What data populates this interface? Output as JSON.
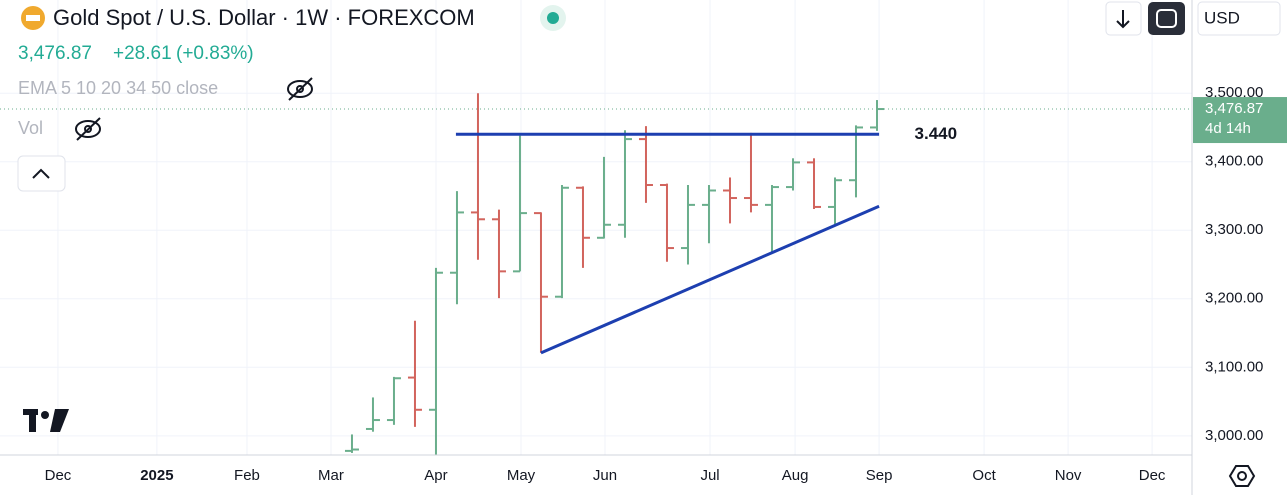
{
  "header": {
    "symbol": "Gold Spot / U.S. Dollar · 1W · FOREXCOM",
    "last": "3,476.87",
    "change": "+28.61",
    "change_pct": "(+0.83%)",
    "indicator": "EMA 5 10 20 34 50 close",
    "volume": "Vol",
    "currency": "USD"
  },
  "chart_data": {
    "type": "ohlc",
    "x": [
      14,
      15,
      16,
      17,
      18,
      19,
      20,
      21,
      22,
      23,
      24,
      25,
      26,
      27,
      28,
      29,
      30,
      31,
      32,
      33,
      34,
      35,
      36,
      37,
      38,
      39
    ],
    "open": [
      2978,
      3010,
      3023,
      3085,
      3038,
      3238,
      3326,
      3316,
      3240,
      3325,
      3203,
      3362,
      3289,
      3308,
      3433,
      3366,
      3274,
      3337,
      3358,
      3347,
      3337,
      3363,
      3399,
      3334,
      3373,
      3450
    ],
    "high": [
      3002,
      3056,
      3086,
      3168,
      3245,
      3357,
      3500,
      3330,
      3438,
      3326,
      3366,
      3364,
      3407,
      3446,
      3452,
      3368,
      3366,
      3366,
      3377,
      3442,
      3366,
      3405,
      3405,
      3377,
      3453,
      3490
    ],
    "low": [
      2975,
      3006,
      3016,
      3013,
      2972,
      3192,
      3257,
      3201,
      3240,
      3121,
      3201,
      3245,
      3288,
      3289,
      3340,
      3254,
      3250,
      3281,
      3310,
      3326,
      3268,
      3358,
      3331,
      3309,
      3348,
      3445
    ],
    "close": [
      2980,
      3023,
      3084,
      3038,
      3238,
      3326,
      3316,
      3240,
      3325,
      3203,
      3362,
      3289,
      3308,
      3433,
      3366,
      3274,
      3337,
      3358,
      3347,
      3337,
      3363,
      3399,
      3334,
      3373,
      3450,
      3476.87
    ],
    "up_color": "#6aae8c",
    "down_color": "#d2645d",
    "xlim": [
      -2.76,
      54
    ],
    "xticks": [
      {
        "value": 0,
        "label": "Dec"
      },
      {
        "value": 4.71,
        "label": "2025"
      },
      {
        "value": 9,
        "label": "Feb"
      },
      {
        "value": 13,
        "label": "Mar"
      },
      {
        "value": 18,
        "label": "Apr"
      },
      {
        "value": 22.05,
        "label": "May"
      },
      {
        "value": 26.05,
        "label": "Jun"
      },
      {
        "value": 31.05,
        "label": "Jul"
      },
      {
        "value": 35.1,
        "label": "Aug"
      },
      {
        "value": 39.1,
        "label": "Sep"
      },
      {
        "value": 44.1,
        "label": "Oct"
      },
      {
        "value": 48.1,
        "label": "Nov"
      },
      {
        "value": 52.1,
        "label": "Dec"
      }
    ],
    "ylim": [
      2972,
      3636
    ],
    "yticks": [
      {
        "value": 3000,
        "label": "3,000.00"
      },
      {
        "value": 3100,
        "label": "3,100.00"
      },
      {
        "value": 3200,
        "label": "3,200.00"
      },
      {
        "value": 3300,
        "label": "3,300.00"
      },
      {
        "value": 3400,
        "label": "3,400.00"
      },
      {
        "value": 3500,
        "label": "3,500.00"
      }
    ],
    "grid": true,
    "last_price": {
      "value": 3476.87,
      "label": "3,476.87"
    },
    "countdown": "4d 14h",
    "trendlines": [
      {
        "points": [
          [
            18.95,
            3440
          ],
          [
            39.1,
            3440
          ]
        ],
        "color": "#1d3fb0"
      },
      {
        "points": [
          [
            23,
            3121
          ],
          [
            39.1,
            3335
          ]
        ],
        "color": "#1d3fb0"
      }
    ],
    "annotations": [
      {
        "text": "3.440",
        "x": 41.8,
        "y": 3440
      }
    ]
  }
}
